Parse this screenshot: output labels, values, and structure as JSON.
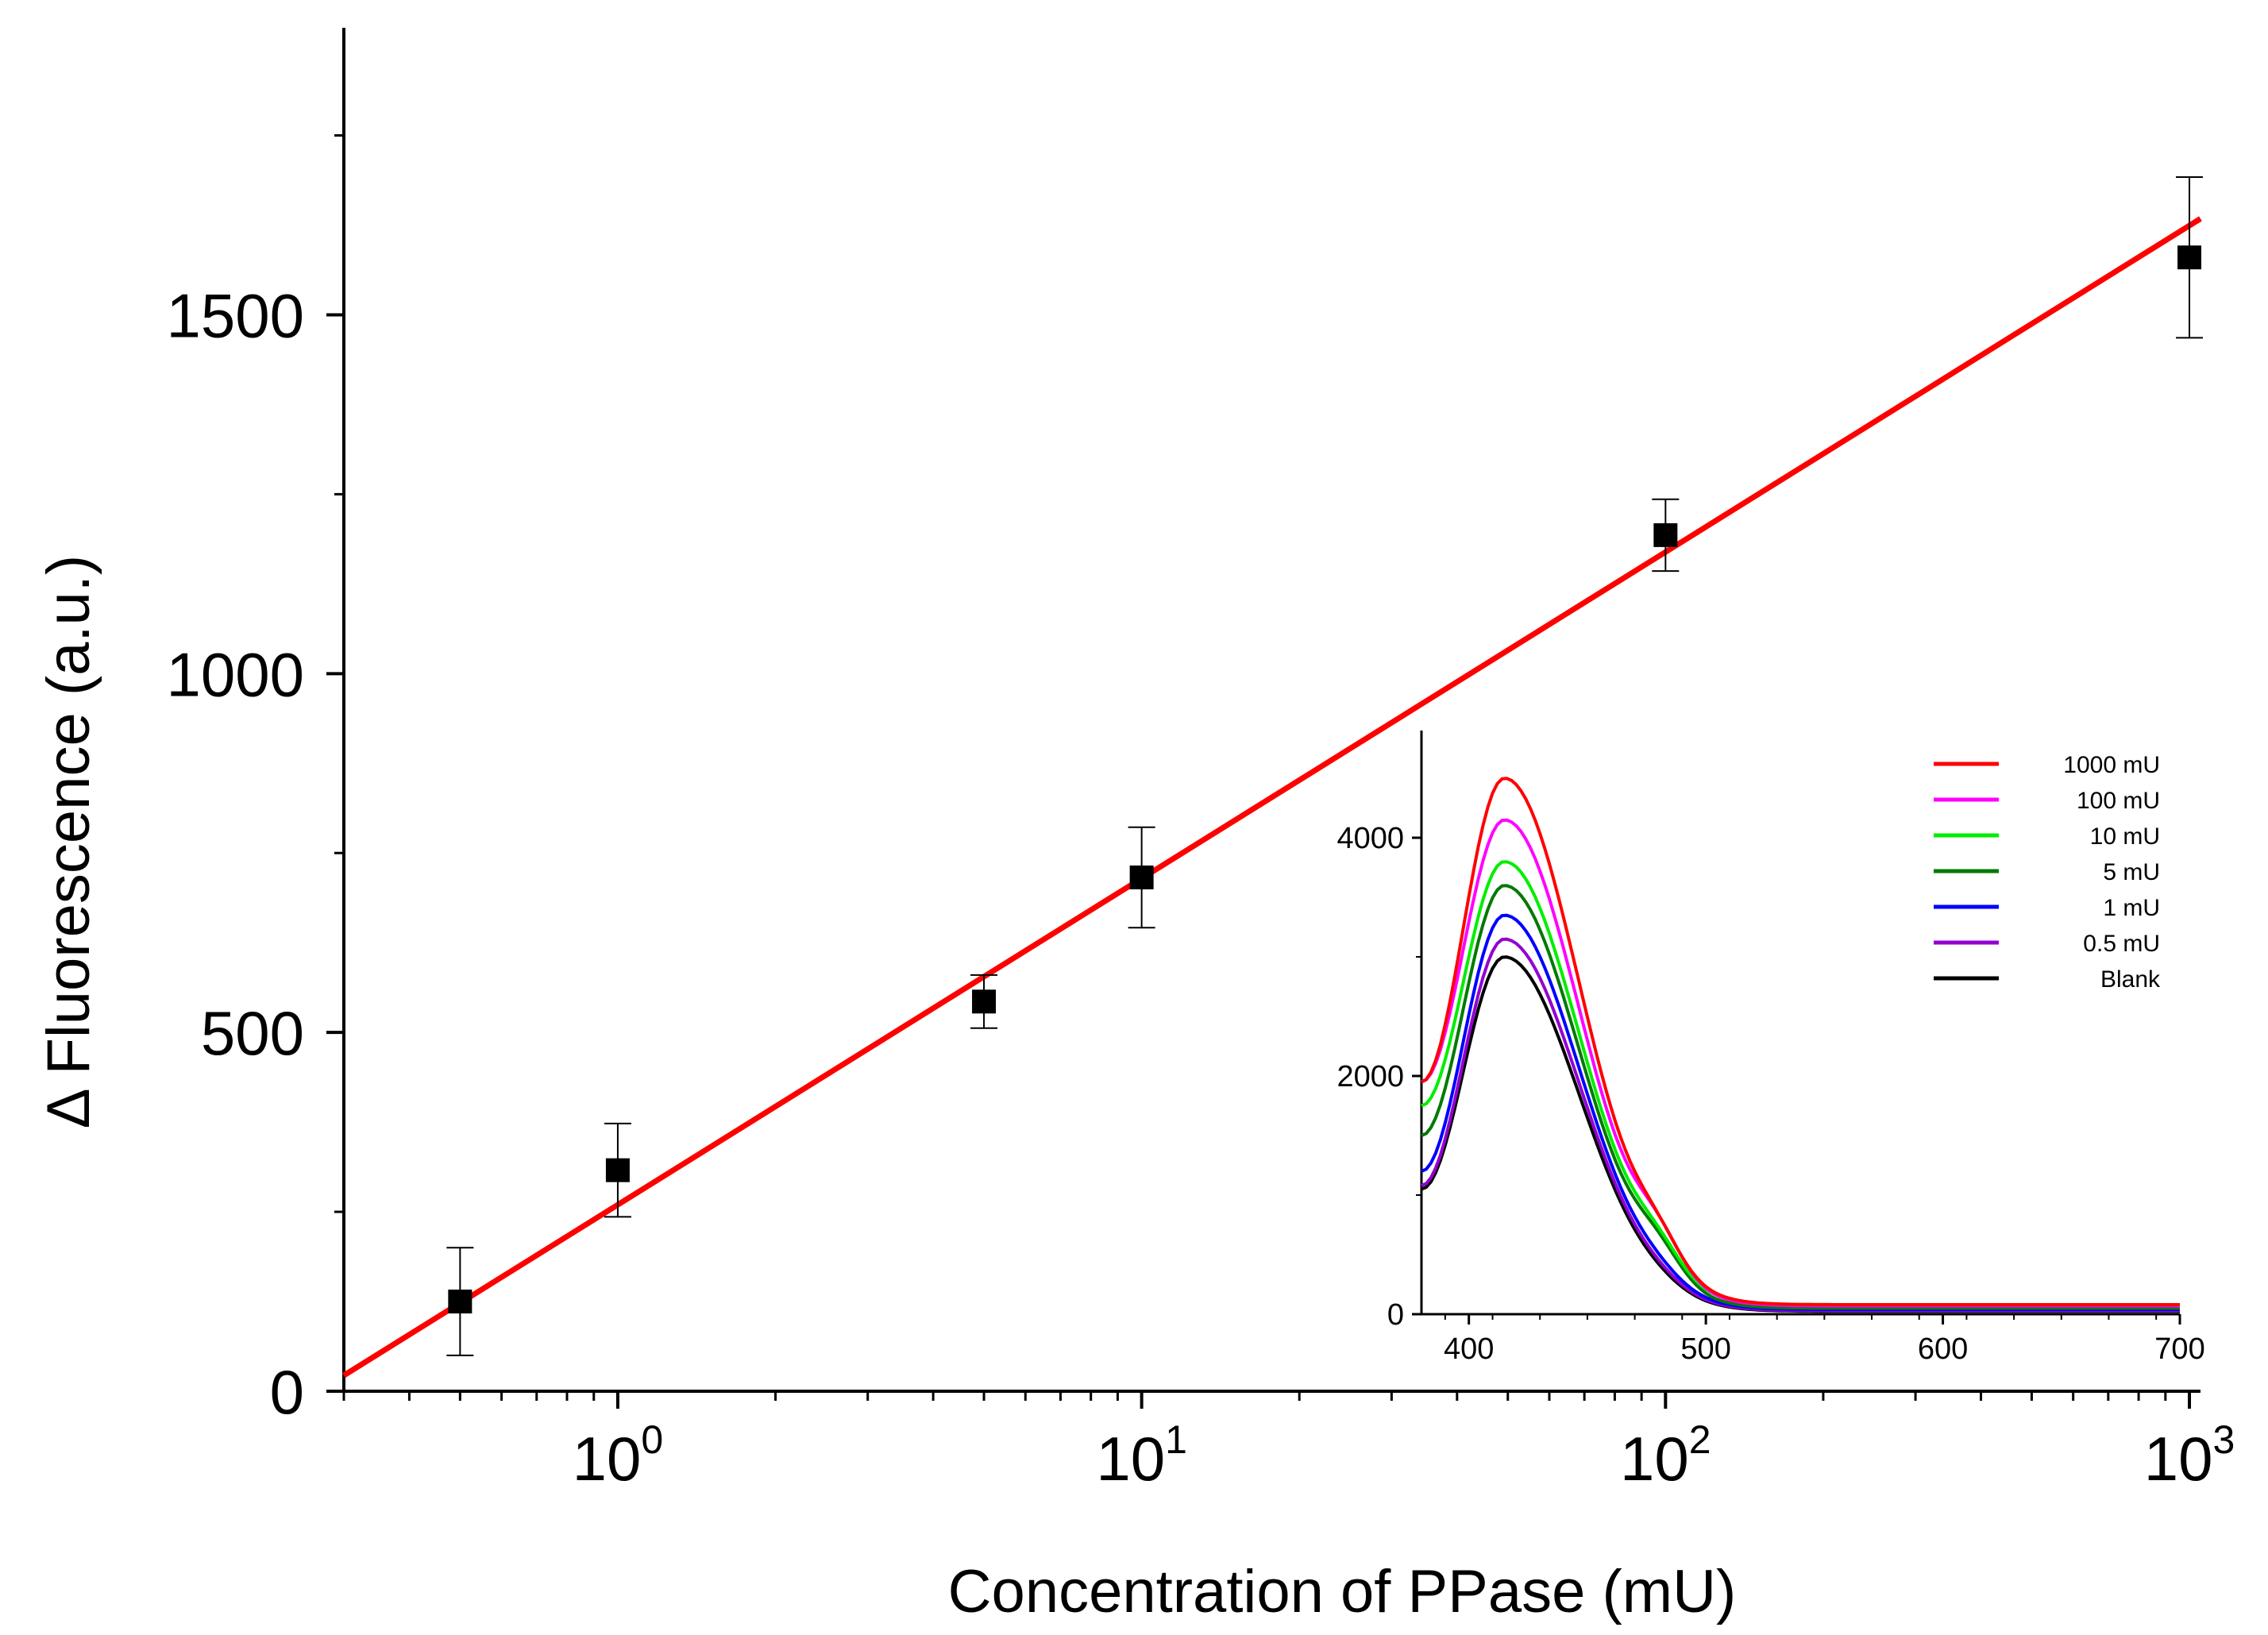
{
  "chart_data": [
    {
      "id": "main",
      "type": "scatter",
      "xlabel": "Concentration of PPase (mU)",
      "ylabel": "Δ Fluorescence (a.u.)",
      "xscale": "log",
      "xlim": [
        0.3,
        1050
      ],
      "ylim": [
        0,
        1900
      ],
      "xticks": [
        {
          "value": 1,
          "base": "10",
          "exp": "0"
        },
        {
          "value": 10,
          "base": "10",
          "exp": "1"
        },
        {
          "value": 100,
          "base": "10",
          "exp": "2"
        },
        {
          "value": 1000,
          "base": "10",
          "exp": "3"
        }
      ],
      "yticks": [
        {
          "value": 0,
          "label": "0"
        },
        {
          "value": 500,
          "label": "500"
        },
        {
          "value": 1000,
          "label": "1000"
        },
        {
          "value": 1500,
          "label": "1500"
        }
      ],
      "y_minor_ticks": [
        250,
        750,
        1250,
        1750
      ],
      "points": [
        {
          "x": 0.5,
          "y": 125,
          "err": 75
        },
        {
          "x": 1,
          "y": 308,
          "err": 65
        },
        {
          "x": 5,
          "y": 543,
          "err": 37
        },
        {
          "x": 10,
          "y": 716,
          "err": 70
        },
        {
          "x": 100,
          "y": 1193,
          "err": 50
        },
        {
          "x": 1000,
          "y": 1580,
          "err": 112
        }
      ],
      "fit_line": {
        "color": "#ff0000",
        "x_start": 0.3,
        "y_start": 22,
        "x_end": 1050,
        "y_end": 1634
      }
    },
    {
      "id": "inset",
      "type": "line",
      "xlabel": "",
      "ylabel": "",
      "xlim": [
        380,
        700
      ],
      "ylim": [
        0,
        4900
      ],
      "xticks": [
        400,
        500,
        600,
        700
      ],
      "yticks": [
        0,
        2000,
        4000
      ],
      "series": [
        {
          "name": "1000 mU",
          "color": "#ff0000",
          "peak": 4500,
          "start": 1950,
          "shoulder": 210,
          "tail": 80
        },
        {
          "name": "100 mU",
          "color": "#ff00ff",
          "peak": 4150,
          "start": 1950,
          "shoulder": 260,
          "tail": 70
        },
        {
          "name": "10 mU",
          "color": "#00ee00",
          "peak": 3800,
          "start": 1750,
          "shoulder": 190,
          "tail": 80
        },
        {
          "name": "5 mU",
          "color": "#007a00",
          "peak": 3600,
          "start": 1500,
          "shoulder": 200,
          "tail": 50
        },
        {
          "name": "1 mU",
          "color": "#0000ff",
          "peak": 3350,
          "start": 1200,
          "shoulder": 60,
          "tail": 40
        },
        {
          "name": "0.5 mU",
          "color": "#9400d3",
          "peak": 3150,
          "start": 1080,
          "shoulder": 40,
          "tail": 30
        },
        {
          "name": "Blank",
          "color": "#000000",
          "peak": 3000,
          "start": 1050,
          "shoulder": 30,
          "tail": 25
        }
      ]
    }
  ]
}
